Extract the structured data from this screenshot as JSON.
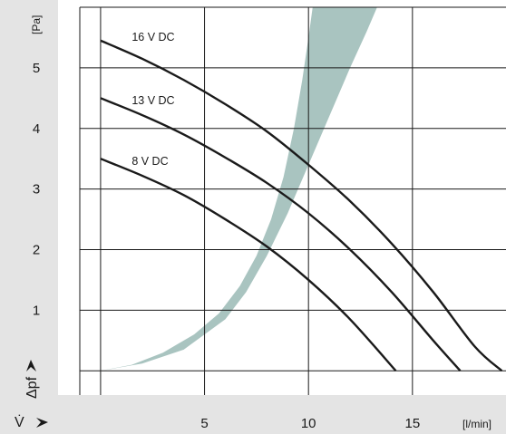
{
  "chart_data": {
    "type": "line",
    "title": "",
    "xlabel": "V̇",
    "ylabel": "Δpf",
    "x_unit": "[l/min]",
    "y_unit": "[Pa]",
    "xlim": [
      -1,
      19.5
    ],
    "ylim": [
      -0.4,
      6
    ],
    "xticks": [
      5,
      10,
      15
    ],
    "yticks": [
      1,
      2,
      3,
      4,
      5
    ],
    "grid": true,
    "colors": {
      "curve": "#1a1a1a",
      "band": "#a9c4c0",
      "panel": "#e4e4e4",
      "grid": "#1a1a1a"
    },
    "series": [
      {
        "name": "16 V DC",
        "x": [
          0,
          2,
          4,
          6,
          8,
          10,
          12,
          14,
          16,
          18,
          19.3
        ],
        "y": [
          5.45,
          5.15,
          4.8,
          4.4,
          3.95,
          3.4,
          2.8,
          2.1,
          1.3,
          0.4,
          0
        ]
      },
      {
        "name": "13 V DC",
        "x": [
          0,
          2,
          4,
          6,
          8,
          10,
          12,
          14,
          16,
          17.3
        ],
        "y": [
          4.5,
          4.22,
          3.9,
          3.52,
          3.1,
          2.6,
          2.0,
          1.3,
          0.5,
          0
        ]
      },
      {
        "name": "8 V DC",
        "x": [
          0,
          2,
          4,
          6,
          8,
          10,
          12,
          14.2
        ],
        "y": [
          3.5,
          3.22,
          2.9,
          2.5,
          2.05,
          1.5,
          0.85,
          0
        ]
      }
    ],
    "band": {
      "name": "",
      "x_lower": [
        0,
        2,
        4,
        6,
        7,
        8,
        9,
        10,
        11,
        12,
        12.8,
        13.3
      ],
      "y_lower": [
        0,
        0.12,
        0.35,
        0.85,
        1.3,
        1.9,
        2.6,
        3.4,
        4.2,
        5.0,
        5.6,
        6.0
      ],
      "x_upper": [
        10.2,
        10,
        9.7,
        9.3,
        8.8,
        8.2,
        7.5,
        6.7,
        5.7,
        4.5,
        3,
        1.5,
        0
      ],
      "y_upper": [
        6.0,
        5.5,
        4.8,
        4.0,
        3.2,
        2.5,
        1.9,
        1.4,
        0.95,
        0.6,
        0.3,
        0.1,
        0
      ]
    }
  }
}
